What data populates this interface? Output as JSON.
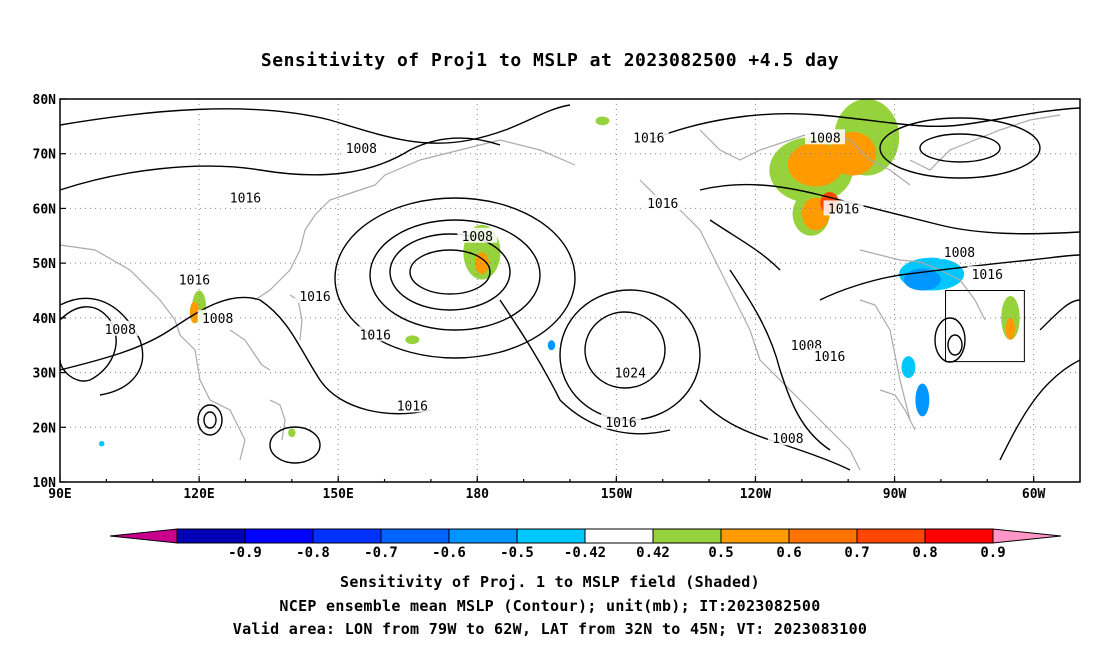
{
  "title": "Sensitivity of Proj1 to MSLP at 2023082500 +4.5 day",
  "lon_ticks": [
    "90E",
    "120E",
    "150E",
    "180",
    "150W",
    "120W",
    "90W",
    "60W"
  ],
  "lat_ticks": [
    "80N",
    "70N",
    "60N",
    "50N",
    "40N",
    "30N",
    "20N",
    "10N"
  ],
  "contour_labels": [
    {
      "text": "1008",
      "lon": 155,
      "lat": 71
    },
    {
      "text": "1016",
      "lon": 130,
      "lat": 62
    },
    {
      "text": "1016",
      "lon": 217,
      "lat": 73
    },
    {
      "text": "1008",
      "lon": 255,
      "lat": 73
    },
    {
      "text": "1016",
      "lon": 220,
      "lat": 61
    },
    {
      "text": "1016",
      "lon": 259,
      "lat": 60
    },
    {
      "text": "1008",
      "lon": 180,
      "lat": 55
    },
    {
      "text": "1008",
      "lon": 284,
      "lat": 52
    },
    {
      "text": "1016",
      "lon": 290,
      "lat": 48
    },
    {
      "text": "1016",
      "lon": 119,
      "lat": 47
    },
    {
      "text": "1016",
      "lon": 145,
      "lat": 44
    },
    {
      "text": "1008",
      "lon": 124,
      "lat": 40
    },
    {
      "text": "1008",
      "lon": 103,
      "lat": 38
    },
    {
      "text": "1016",
      "lon": 158,
      "lat": 37
    },
    {
      "text": "1008",
      "lon": 251,
      "lat": 35
    },
    {
      "text": "1016",
      "lon": 256,
      "lat": 33
    },
    {
      "text": "1024",
      "lon": 213,
      "lat": 30
    },
    {
      "text": "1016",
      "lon": 166,
      "lat": 24
    },
    {
      "text": "1016",
      "lon": 211,
      "lat": 21
    },
    {
      "text": "1008",
      "lon": 247,
      "lat": 18
    }
  ],
  "colorbar": {
    "labels": [
      "-0.9",
      "-0.8",
      "-0.7",
      "-0.6",
      "-0.5",
      "-0.42",
      "0.42",
      "0.5",
      "0.6",
      "0.7",
      "0.8",
      "0.9"
    ],
    "colors": [
      "#0000b4",
      "#0000ff",
      "#0032ff",
      "#0064ff",
      "#0096ff",
      "#00c8ff",
      "#ffffff",
      "#96d23c",
      "#ff9b00",
      "#ff7300",
      "#ff4600",
      "#ff0000"
    ],
    "low_end_color": "#c8008c",
    "high_end_color": "#ff96c8"
  },
  "caption_lines": [
    "Sensitivity of Proj. 1 to MSLP field (Shaded)",
    "NCEP ensemble mean MSLP (Contour); unit(mb); IT:2023082500",
    "Valid area: LON from 79W to 62W, LAT from 32N to 45N; VT: 2023083100"
  ],
  "valid_box": {
    "lon_min": 281,
    "lon_max": 298,
    "lat_min": 32,
    "lat_max": 45
  },
  "shaded_areas": [
    {
      "lon": 252,
      "lat": 67,
      "rlon": 9,
      "rlat": 6,
      "color": "#96d23c"
    },
    {
      "lon": 264,
      "lat": 73,
      "rlon": 7,
      "rlat": 7,
      "color": "#96d23c"
    },
    {
      "lon": 253,
      "lat": 68,
      "rlon": 6,
      "rlat": 4,
      "color": "#ff9b00"
    },
    {
      "lon": 261,
      "lat": 70,
      "rlon": 5,
      "rlat": 4,
      "color": "#ff9b00"
    },
    {
      "lon": 252,
      "lat": 59,
      "rlon": 4,
      "rlat": 4,
      "color": "#96d23c"
    },
    {
      "lon": 253,
      "lat": 59,
      "rlon": 3,
      "rlat": 3,
      "color": "#ff9b00"
    },
    {
      "lon": 256,
      "lat": 61,
      "rlon": 2,
      "rlat": 2,
      "color": "#ff4600"
    },
    {
      "lon": 181,
      "lat": 52,
      "rlon": 4,
      "rlat": 5,
      "color": "#96d23c"
    },
    {
      "lon": 181,
      "lat": 50,
      "rlon": 1.5,
      "rlat": 2,
      "color": "#ff9b00"
    },
    {
      "lon": 120,
      "lat": 42,
      "rlon": 1.5,
      "rlat": 3,
      "color": "#96d23c"
    },
    {
      "lon": 119,
      "lat": 41,
      "rlon": 1,
      "rlat": 2,
      "color": "#ff9b00"
    },
    {
      "lon": 278,
      "lat": 48,
      "rlon": 7,
      "rlat": 3,
      "color": "#00c8ff"
    },
    {
      "lon": 276,
      "lat": 47,
      "rlon": 4,
      "rlat": 2,
      "color": "#0096ff"
    },
    {
      "lon": 273,
      "lat": 31,
      "rlon": 1.5,
      "rlat": 2,
      "color": "#00c8ff"
    },
    {
      "lon": 276,
      "lat": 25,
      "rlon": 1.5,
      "rlat": 3,
      "color": "#0096ff"
    },
    {
      "lon": 295,
      "lat": 40,
      "rlon": 2,
      "rlat": 4,
      "color": "#96d23c"
    },
    {
      "lon": 295,
      "lat": 38,
      "rlon": 1,
      "rlat": 2,
      "color": "#ff9b00"
    },
    {
      "lon": 166,
      "lat": 36,
      "rlon": 1.5,
      "rlat": 0.8,
      "color": "#96d23c"
    },
    {
      "lon": 140,
      "lat": 19,
      "rlon": 0.8,
      "rlat": 0.8,
      "color": "#96d23c"
    },
    {
      "lon": 207,
      "lat": 76,
      "rlon": 1.5,
      "rlat": 0.8,
      "color": "#96d23c"
    },
    {
      "lon": 196,
      "lat": 35,
      "rlon": 0.8,
      "rlat": 0.9,
      "color": "#0096ff"
    },
    {
      "lon": 99,
      "lat": 17,
      "rlon": 0.6,
      "rlat": 0.5,
      "color": "#00c8ff"
    }
  ]
}
